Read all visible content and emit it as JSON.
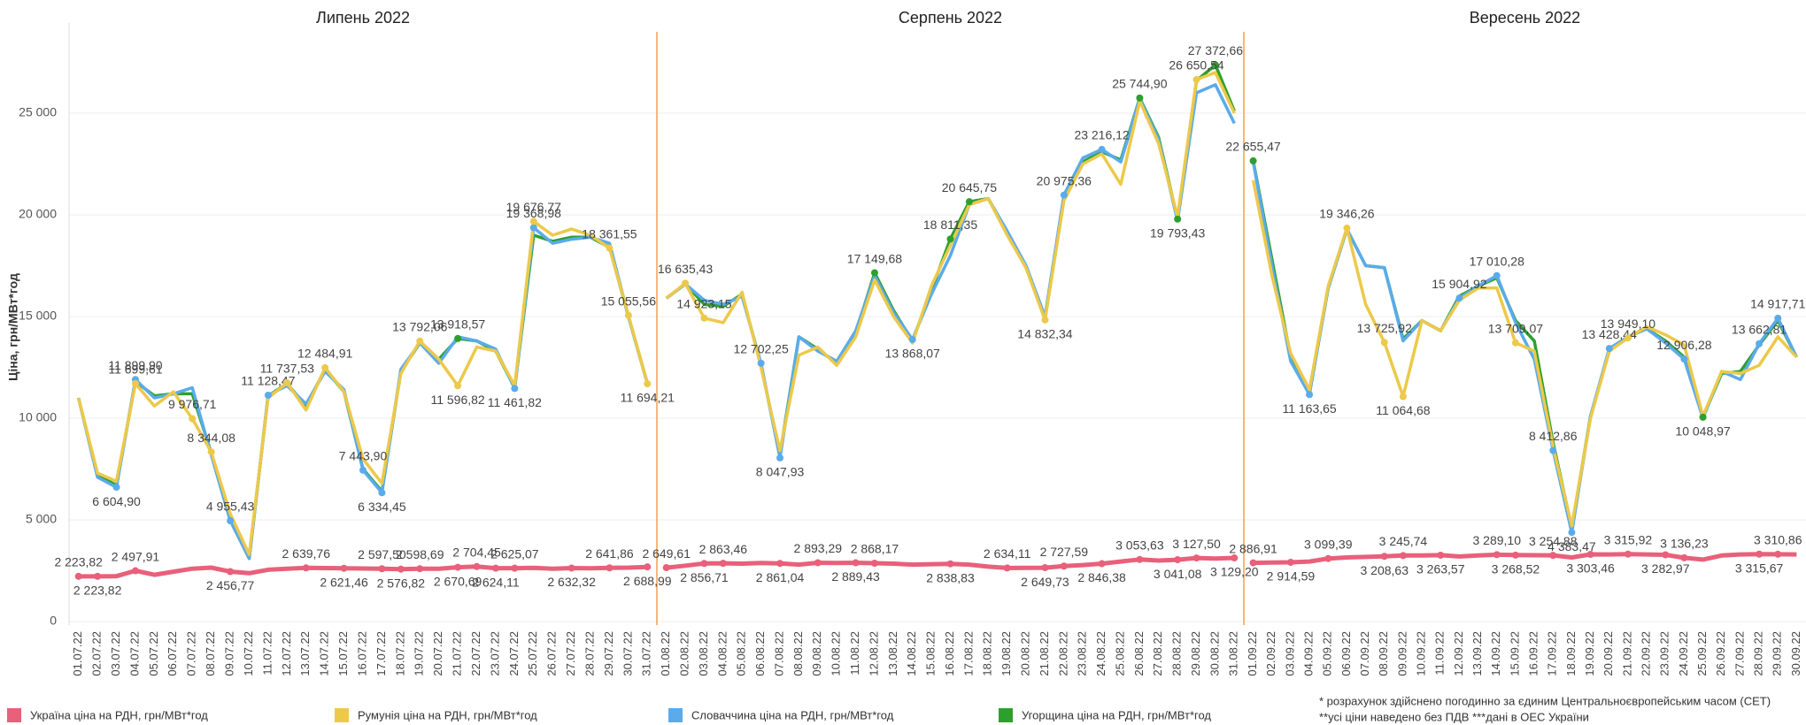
{
  "chart_data": {
    "type": "line",
    "y_label": "Ціна, грн/МВт*год",
    "ylim": [
      0,
      29000
    ],
    "yticks": [
      0,
      {
        "value": 5000,
        "label": "5 000"
      },
      {
        "value": 10000,
        "label": "10 000"
      },
      {
        "value": 15000,
        "label": "15 000"
      },
      {
        "value": 20000,
        "label": "20 000"
      },
      {
        "value": 25000,
        "label": "25 000"
      }
    ],
    "grid": true,
    "panels": [
      {
        "title": "Липень 2022",
        "categories": [
          "01.07.22",
          "02.07.22",
          "03.07.22",
          "04.07.22",
          "05.07.22",
          "06.07.22",
          "07.07.22",
          "08.07.22",
          "09.07.22",
          "10.07.22",
          "11.07.22",
          "12.07.22",
          "13.07.22",
          "14.07.22",
          "15.07.22",
          "16.07.22",
          "17.07.22",
          "18.07.22",
          "19.07.22",
          "20.07.22",
          "21.07.22",
          "22.07.22",
          "23.07.22",
          "24.07.22",
          "25.07.22",
          "26.07.22",
          "27.07.22",
          "28.07.22",
          "29.07.22",
          "30.07.22",
          "31.07.22"
        ]
      },
      {
        "title": "Серпень 2022",
        "categories": [
          "01.08.22",
          "02.08.22",
          "03.08.22",
          "04.08.22",
          "05.08.22",
          "06.08.22",
          "07.08.22",
          "08.08.22",
          "09.08.22",
          "10.08.22",
          "11.08.22",
          "12.08.22",
          "13.08.22",
          "14.08.22",
          "15.08.22",
          "16.08.22",
          "17.08.22",
          "18.08.22",
          "19.08.22",
          "20.08.22",
          "21.08.22",
          "22.08.22",
          "23.08.22",
          "24.08.22",
          "25.08.22",
          "26.08.22",
          "27.08.22",
          "28.08.22",
          "29.08.22",
          "30.08.22",
          "31.08.22"
        ]
      },
      {
        "title": "Вересень 2022",
        "categories": [
          "01.09.22",
          "02.09.22",
          "03.09.22",
          "04.09.22",
          "05.09.22",
          "06.09.22",
          "07.09.22",
          "08.09.22",
          "09.09.22",
          "10.09.22",
          "11.09.22",
          "12.09.22",
          "13.09.22",
          "14.09.22",
          "15.09.22",
          "16.09.22",
          "17.09.22",
          "18.09.22",
          "19.09.22",
          "20.09.22",
          "21.09.22",
          "22.09.22",
          "23.09.22",
          "24.09.22",
          "25.09.22",
          "26.09.22",
          "27.09.22",
          "28.09.22",
          "29.09.22",
          "30.09.22"
        ]
      }
    ],
    "series": [
      {
        "name": "Україна ціна на РДН, грн/МВт*год",
        "color": "#e8607a",
        "values": [
          2223.82,
          2223.82,
          2230,
          2497.91,
          2300,
          2450,
          2600,
          2650,
          2456.77,
          2380,
          2550,
          2600,
          2639.76,
          2630,
          2621.46,
          2610,
          2597.5,
          2576.82,
          2598.69,
          2600,
          2670.69,
          2704.45,
          2624.11,
          2625.07,
          2640,
          2600,
          2632.32,
          2620,
          2641.86,
          2650,
          2688.99,
          2649.61,
          2750,
          2856.71,
          2863.46,
          2850,
          2880,
          2861.04,
          2800,
          2893.29,
          2880,
          2889.43,
          2868.17,
          2850,
          2800,
          2820,
          2838.83,
          2800,
          2700,
          2634.11,
          2640,
          2649.73,
          2727.59,
          2780,
          2846.38,
          2950,
          3053.63,
          3000,
          3041.08,
          3127.5,
          3100,
          3129.2,
          2886.91,
          2900,
          2914.59,
          2950,
          3099.39,
          3150,
          3180,
          3208.63,
          3245.74,
          3250,
          3263.57,
          3200,
          3250,
          3289.1,
          3268.52,
          3260,
          3254.88,
          3150,
          3303.46,
          3300,
          3315.92,
          3300,
          3282.97,
          3136.23,
          3050,
          3250,
          3300,
          3315.67,
          3310.86,
          3300
        ],
        "value_labels": [
          "2 223,82",
          "2 223,82",
          null,
          "2 497,91",
          null,
          null,
          null,
          null,
          "2 456,77",
          null,
          null,
          null,
          "2 639,76",
          null,
          "2 621,46",
          null,
          "2 597,50",
          "2 576,82",
          "2 598,69",
          null,
          "2 670,69",
          "2 704,45",
          "2 624,11",
          "2 625,07",
          null,
          null,
          "2 632,32",
          null,
          "2 641,86",
          null,
          "2 688,99",
          "2 649,61",
          null,
          "2 856,71",
          "2 863,46",
          null,
          null,
          "2 861,04",
          null,
          "2 893,29",
          null,
          "2 889,43",
          "2 868,17",
          null,
          null,
          null,
          "2 838,83",
          null,
          null,
          "2 634,11",
          null,
          "2 649,73",
          "2 727,59",
          null,
          "2 846,38",
          null,
          "3 053,63",
          null,
          "3 041,08",
          "3 127,50",
          null,
          "3 129,20",
          "2 886,91",
          null,
          "2 914,59",
          null,
          "3 099,39",
          null,
          null,
          "3 208,63",
          "3 245,74",
          null,
          "3 263,57",
          null,
          null,
          "3 289,10",
          "3 268,52",
          null,
          "3 254,88",
          null,
          "3 303,46",
          null,
          "3 315,92",
          null,
          "3 282,97",
          "3 136,23",
          null,
          null,
          null,
          "3 315,67",
          "3 310,86",
          null
        ]
      },
      {
        "name": "Румунія ціна на РДН, грн/МВт*год",
        "color": "#ecc94b",
        "values": [
          11000,
          7300,
          6900,
          11699.61,
          10600,
          11300,
          9976.71,
          8344.08,
          5300,
          3300,
          11000,
          11737.53,
          10400,
          12484.91,
          11300,
          8000,
          6800,
          12200,
          13792.06,
          12900,
          11596.82,
          13500,
          13300,
          11600,
          19676.77,
          19000,
          19300,
          19000,
          18361.55,
          15055.56,
          11694.21,
          15900,
          16635.43,
          14923.15,
          14700,
          16200,
          12500,
          8400,
          13100,
          13500,
          12600,
          14000,
          16800,
          15000,
          13700,
          16500,
          18500,
          20500,
          20800,
          19000,
          17400,
          14832.34,
          20700,
          22500,
          23000,
          21500,
          25600,
          23500,
          19900,
          26650.54,
          27000,
          25000,
          21700,
          17000,
          13200,
          11400,
          16500,
          19346.26,
          15600,
          13725.92,
          11064.68,
          14800,
          14300,
          15800,
          16400,
          16400,
          13709.07,
          13300,
          8600,
          4700,
          10000,
          13300,
          13949.1,
          14500,
          14100,
          13600,
          10100,
          12300,
          12200,
          12600,
          14000,
          13000
        ],
        "value_labels": [
          null,
          null,
          null,
          "11 699,61",
          null,
          null,
          "9 976,71",
          "8 344,08",
          null,
          null,
          null,
          "11 737,53",
          null,
          "12 484,91",
          null,
          null,
          null,
          null,
          "13 792,06",
          null,
          "11 596,82",
          null,
          null,
          null,
          "19 676,77",
          null,
          null,
          null,
          "18 361,55",
          "15 055,56",
          "11 694,21",
          null,
          "16 635,43",
          "14 923,15",
          null,
          null,
          null,
          null,
          null,
          null,
          null,
          null,
          null,
          null,
          null,
          null,
          null,
          null,
          null,
          null,
          null,
          "14 832,34",
          null,
          null,
          null,
          null,
          null,
          null,
          null,
          "26 650,54",
          null,
          null,
          null,
          null,
          null,
          null,
          null,
          "19 346,26",
          null,
          "13 725,92",
          "11 064,68",
          null,
          null,
          null,
          null,
          null,
          "13 709,07",
          null,
          null,
          null,
          null,
          null,
          "13 949,10",
          null,
          null,
          null,
          null,
          null,
          null,
          null,
          null,
          null
        ]
      },
      {
        "name": "Словаччина ціна на РДН, грн/МВт*год",
        "color": "#5aabeb",
        "values": [
          11000,
          7100,
          6604.9,
          11899.9,
          11000,
          11200,
          11500,
          8200,
          4955.43,
          3100,
          11128.47,
          11600,
          10700,
          12300,
          11400,
          7443.9,
          6334.45,
          12400,
          13700,
          12700,
          14000,
          13800,
          13400,
          11461.82,
          19368.98,
          18600,
          18800,
          18900,
          18600,
          15000,
          11700,
          15900,
          16600,
          15800,
          15600,
          16000,
          12702.25,
          8047.93,
          14000,
          13300,
          12800,
          14300,
          17000,
          15200,
          13868.07,
          16100,
          18000,
          20500,
          20800,
          19200,
          17500,
          15000,
          20975.36,
          22800,
          23216.12,
          22600,
          25700,
          23700,
          19700,
          26000,
          26400,
          24500,
          22600,
          17500,
          12800,
          11163.65,
          16400,
          19300,
          17500,
          17400,
          13800,
          14800,
          14300,
          15904.92,
          16500,
          17010.28,
          14700,
          12900,
          8412.86,
          4383.47,
          10100,
          13428.44,
          14000,
          14400,
          13700,
          12906.28,
          10000,
          12300,
          11900,
          13662.81,
          14917.71,
          13000
        ],
        "value_labels": [
          null,
          null,
          "6 604,90",
          "11 899,90",
          null,
          null,
          null,
          null,
          "4 955,43",
          null,
          "11 128,47",
          null,
          null,
          null,
          null,
          "7 443,90",
          "6 334,45",
          null,
          null,
          null,
          null,
          null,
          null,
          "11 461,82",
          "19 368,98",
          null,
          null,
          null,
          null,
          null,
          null,
          null,
          null,
          null,
          null,
          null,
          "12 702,25",
          "8 047,93",
          null,
          null,
          null,
          null,
          null,
          null,
          "13 868,07",
          null,
          null,
          null,
          null,
          null,
          null,
          null,
          "20 975,36",
          null,
          "23 216,12",
          null,
          null,
          null,
          null,
          null,
          null,
          null,
          null,
          null,
          null,
          "11 163,65",
          null,
          null,
          null,
          null,
          null,
          null,
          null,
          "15 904,92",
          null,
          "17 010,28",
          null,
          null,
          "8 412,86",
          "4 383,47",
          null,
          "13 428,44",
          null,
          null,
          null,
          "12 906,28",
          null,
          null,
          null,
          "13 662,81",
          "14 917,71",
          null
        ]
      },
      {
        "name": "Угорщина ціна на РДН, грн/МВт*год",
        "color": "#2ca02c",
        "values": [
          11000,
          7200,
          6700,
          11800,
          11100,
          11200,
          11200,
          8300,
          5000,
          3100,
          11100,
          11700,
          10600,
          12400,
          11300,
          7500,
          6400,
          12300,
          13700,
          12900,
          13918.57,
          13800,
          13300,
          11500,
          19000,
          18700,
          18900,
          18900,
          18400,
          15000,
          11700,
          15900,
          16600,
          15600,
          15500,
          16100,
          12600,
          8200,
          14000,
          13400,
          12700,
          14200,
          17149.68,
          15300,
          13800,
          16300,
          18811.35,
          20645.75,
          20800,
          19100,
          17400,
          14900,
          20900,
          22600,
          23100,
          22700,
          25744.9,
          23800,
          19793.43,
          26600,
          27372.66,
          25100,
          22655.47,
          17800,
          13000,
          11300,
          16400,
          19300,
          17500,
          17400,
          13900,
          14800,
          14300,
          16000,
          16500,
          16900,
          14800,
          13800,
          8800,
          4600,
          10100,
          13300,
          14000,
          14400,
          13800,
          13000,
          10048.97,
          12200,
          12300,
          13600,
          14800,
          13000
        ],
        "value_labels": [
          null,
          null,
          null,
          null,
          null,
          null,
          null,
          null,
          null,
          null,
          null,
          null,
          null,
          null,
          null,
          null,
          null,
          null,
          null,
          null,
          "13 918,57",
          null,
          null,
          null,
          null,
          null,
          null,
          null,
          null,
          null,
          null,
          null,
          null,
          null,
          null,
          null,
          null,
          null,
          null,
          null,
          null,
          null,
          "17 149,68",
          null,
          null,
          null,
          "18 811,35",
          "20 645,75",
          null,
          null,
          null,
          null,
          null,
          null,
          null,
          null,
          "25 744,90",
          null,
          "19 793,43",
          null,
          "27 372,66",
          null,
          "22 655,47",
          null,
          null,
          null,
          null,
          null,
          null,
          null,
          null,
          null,
          null,
          null,
          null,
          null,
          null,
          null,
          null,
          null,
          null,
          null,
          null,
          null,
          null,
          null,
          "10 048,97",
          null,
          null,
          null,
          null,
          null
        ]
      }
    ],
    "notes": [
      "* розрахунок здійснено погодинно за єдиним Центральноєвропейським часом (CET)",
      "**усі ціни наведено без ПДВ   ***дані в ОЕС України"
    ]
  }
}
